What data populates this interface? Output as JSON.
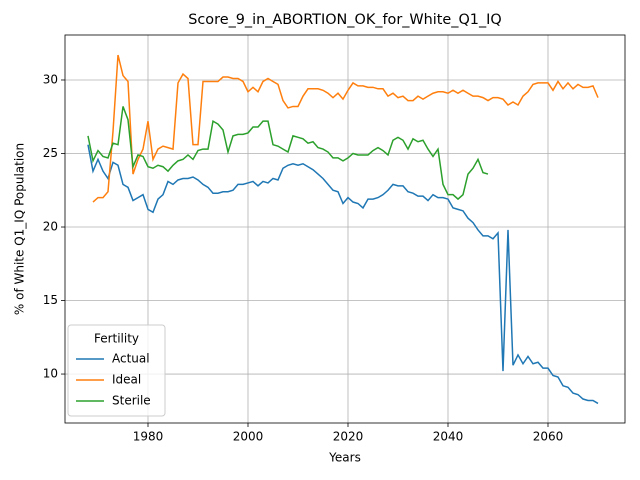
{
  "chart_data": {
    "type": "line",
    "title": "Score_9_in_ABORTION_OK_for_White_Q1_IQ",
    "xlabel": "Years",
    "ylabel": "% of White Q1_IQ Population",
    "x": [
      1968,
      1969,
      1970,
      1971,
      1972,
      1973,
      1974,
      1975,
      1976,
      1977,
      1978,
      1979,
      1980,
      1981,
      1982,
      1983,
      1984,
      1985,
      1986,
      1987,
      1988,
      1989,
      1990,
      1991,
      1992,
      1993,
      1994,
      1995,
      1996,
      1997,
      1998,
      1999,
      2000,
      2001,
      2002,
      2003,
      2004,
      2005,
      2006,
      2007,
      2008,
      2009,
      2010,
      2011,
      2012,
      2013,
      2014,
      2015,
      2016,
      2017,
      2018,
      2019,
      2020,
      2021,
      2022,
      2023,
      2024,
      2025,
      2026,
      2027,
      2028,
      2029,
      2030,
      2031,
      2032,
      2033,
      2034,
      2035,
      2036,
      2037,
      2038,
      2039,
      2040,
      2041,
      2042,
      2043,
      2044,
      2045,
      2046,
      2047,
      2048,
      2049,
      2050,
      2051,
      2052,
      2053,
      2054,
      2055,
      2056,
      2057,
      2058,
      2059,
      2060,
      2061,
      2062,
      2063,
      2064,
      2065,
      2066,
      2067,
      2068,
      2069,
      2070
    ],
    "series": [
      {
        "name": "Actual",
        "color": "#1f77b4",
        "values": [
          25.6,
          23.8,
          24.6,
          23.8,
          23.3,
          24.4,
          24.2,
          22.9,
          22.7,
          21.8,
          22.0,
          22.2,
          21.2,
          21.0,
          21.9,
          22.2,
          23.1,
          22.9,
          23.2,
          23.3,
          23.3,
          23.4,
          23.2,
          22.9,
          22.7,
          22.3,
          22.3,
          22.4,
          22.4,
          22.5,
          22.9,
          22.9,
          23.0,
          23.1,
          22.8,
          23.1,
          23.0,
          23.3,
          23.2,
          24.0,
          24.2,
          24.3,
          24.2,
          24.3,
          24.1,
          23.9,
          23.6,
          23.3,
          22.9,
          22.5,
          22.4,
          21.6,
          22.0,
          21.7,
          21.6,
          21.3,
          21.9,
          21.9,
          22.0,
          22.2,
          22.5,
          22.9,
          22.8,
          22.8,
          22.4,
          22.3,
          22.1,
          22.1,
          21.8,
          22.2,
          22.0,
          22.0,
          21.9,
          21.3,
          21.2,
          21.1,
          20.6,
          20.3,
          19.8,
          19.4,
          19.4,
          19.2,
          19.6,
          10.2,
          19.8,
          10.6,
          11.3,
          10.7,
          11.2,
          10.7,
          10.8,
          10.4,
          10.4,
          9.9,
          9.8,
          9.2,
          9.1,
          8.7,
          8.6,
          8.3,
          8.2,
          8.2,
          8.0
        ]
      },
      {
        "name": "Ideal",
        "color": "#ff7f0e",
        "values": [
          null,
          21.7,
          22.0,
          22.0,
          22.4,
          26.5,
          31.7,
          30.3,
          29.9,
          23.6,
          24.6,
          25.3,
          27.2,
          24.6,
          25.3,
          25.5,
          25.4,
          25.3,
          29.8,
          30.4,
          30.1,
          25.6,
          25.6,
          29.9,
          29.9,
          29.9,
          29.9,
          30.2,
          30.2,
          30.1,
          30.1,
          29.9,
          29.2,
          29.5,
          29.2,
          29.9,
          30.1,
          29.9,
          29.7,
          28.6,
          28.1,
          28.2,
          28.2,
          28.9,
          29.4,
          29.4,
          29.4,
          29.3,
          29.1,
          28.8,
          29.1,
          28.7,
          29.3,
          29.8,
          29.6,
          29.6,
          29.5,
          29.5,
          29.4,
          29.4,
          28.9,
          29.1,
          28.8,
          28.9,
          28.6,
          28.6,
          28.9,
          28.7,
          28.9,
          29.1,
          29.2,
          29.2,
          29.1,
          29.3,
          29.1,
          29.3,
          29.1,
          28.9,
          28.9,
          28.8,
          28.6,
          28.8,
          28.8,
          28.7,
          28.3,
          28.5,
          28.3,
          28.9,
          29.2,
          29.7,
          29.8,
          29.8,
          29.8,
          29.3,
          29.9,
          29.4,
          29.8,
          29.4,
          29.7,
          29.5,
          29.5,
          29.6,
          28.8
        ]
      },
      {
        "name": "Sterile",
        "color": "#2ca02c",
        "values": [
          26.2,
          24.5,
          25.2,
          24.8,
          24.7,
          25.7,
          25.6,
          28.2,
          27.3,
          24.1,
          24.9,
          24.8,
          24.1,
          24.0,
          24.2,
          24.1,
          23.8,
          24.2,
          24.5,
          24.6,
          24.9,
          24.6,
          25.2,
          25.3,
          25.3,
          27.2,
          27.0,
          26.6,
          25.1,
          26.2,
          26.3,
          26.3,
          26.4,
          26.8,
          26.8,
          27.2,
          27.2,
          25.6,
          25.5,
          25.3,
          25.1,
          26.2,
          26.1,
          26.0,
          25.7,
          25.8,
          25.4,
          25.3,
          25.1,
          24.7,
          24.7,
          24.5,
          24.7,
          25.0,
          24.9,
          24.9,
          24.9,
          25.2,
          25.4,
          25.2,
          24.9,
          25.9,
          26.1,
          25.9,
          25.3,
          26.0,
          25.8,
          25.9,
          25.3,
          24.8,
          25.3,
          22.9,
          22.2,
          22.2,
          21.9,
          22.2,
          23.6,
          24.0,
          24.6,
          23.7,
          23.6,
          null,
          null,
          null,
          null,
          null,
          null,
          null,
          null,
          null,
          null,
          null,
          null,
          null,
          null,
          null,
          null,
          null,
          null,
          null,
          null,
          null,
          null
        ]
      }
    ],
    "legend_title": "Fertility",
    "legend": "lower left",
    "xlim": [
      1963.4,
      2075.4
    ],
    "xticks": [
      1980,
      2000,
      2020,
      2040,
      2060
    ],
    "ylim": [
      6.67,
      33.06
    ],
    "yticks": [
      10,
      15,
      20,
      25,
      30
    ],
    "grid": true
  }
}
